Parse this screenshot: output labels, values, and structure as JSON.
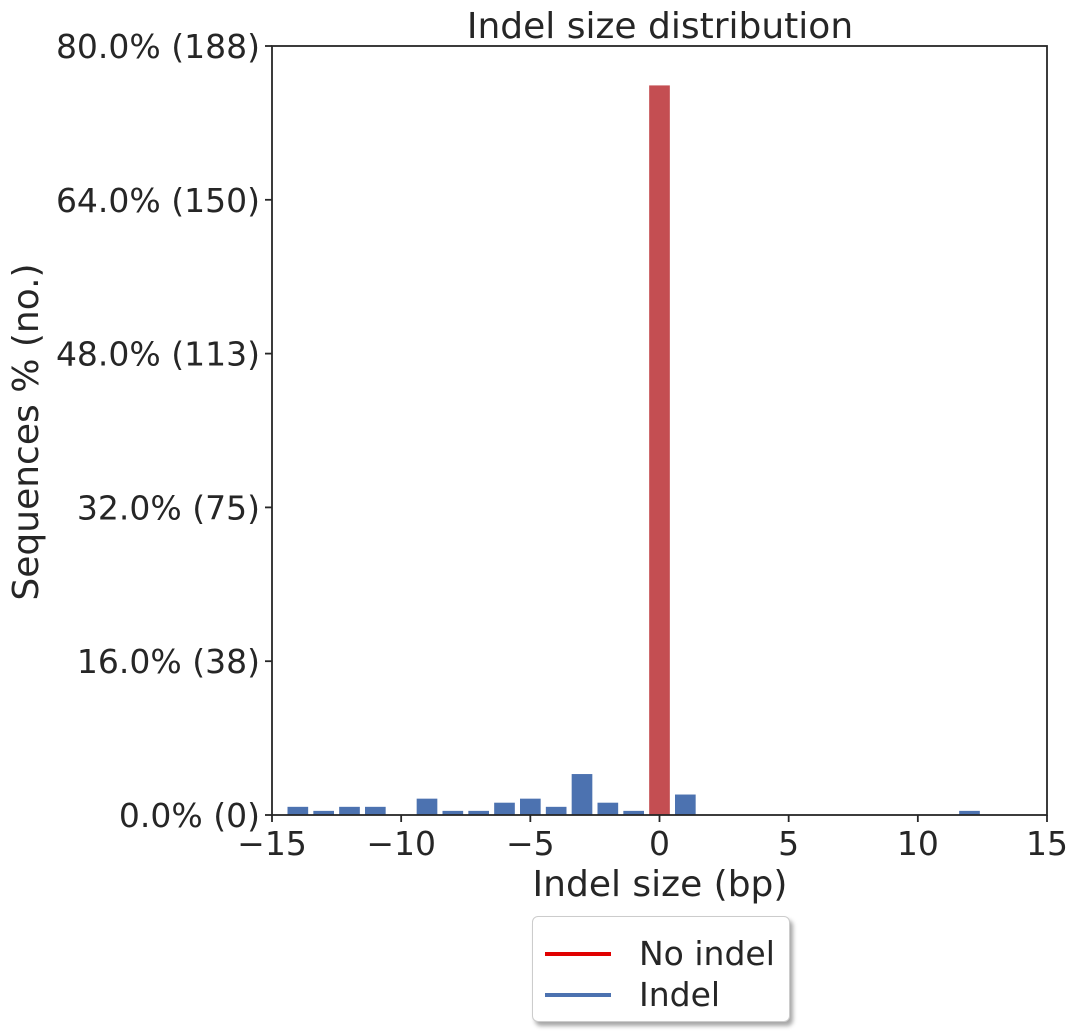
{
  "chart_data": {
    "type": "bar",
    "title": "Indel size distribution",
    "xlabel": "Indel size (bp)",
    "ylabel": "Sequences % (no.)",
    "xlim": [
      -15,
      15
    ],
    "ylim": [
      0,
      80
    ],
    "xticks": [
      {
        "value": -15,
        "label": "−15"
      },
      {
        "value": -10,
        "label": "−10"
      },
      {
        "value": -5,
        "label": "−5"
      },
      {
        "value": 0,
        "label": "0"
      },
      {
        "value": 5,
        "label": "5"
      },
      {
        "value": 10,
        "label": "10"
      },
      {
        "value": 15,
        "label": "15"
      }
    ],
    "yticks": [
      {
        "value": 0,
        "label": "0.0% (0)"
      },
      {
        "value": 16,
        "label": "16.0% (38)"
      },
      {
        "value": 32,
        "label": "32.0% (75)"
      },
      {
        "value": 48,
        "label": "48.0% (113)"
      },
      {
        "value": 64,
        "label": "64.0% (150)"
      },
      {
        "value": 80,
        "label": "80.0% (188)"
      }
    ],
    "grid": false,
    "legend_position": "below",
    "series": [
      {
        "name": "No indel",
        "color": "#c44e52",
        "legend_color": "#e00000",
        "x": [
          0
        ],
        "values": [
          75.9
        ]
      },
      {
        "name": "Indel",
        "color": "#4c72b0",
        "legend_color": "#4c72b0",
        "x": [
          -14,
          -13,
          -12,
          -11,
          -9,
          -8,
          -7,
          -6,
          -5,
          -4,
          -3,
          -2,
          -1,
          1,
          12
        ],
        "values": [
          0.85,
          0.43,
          0.85,
          0.85,
          1.7,
          0.43,
          0.43,
          1.28,
          1.7,
          0.85,
          4.26,
          1.28,
          0.43,
          2.13,
          0.43
        ]
      }
    ]
  }
}
